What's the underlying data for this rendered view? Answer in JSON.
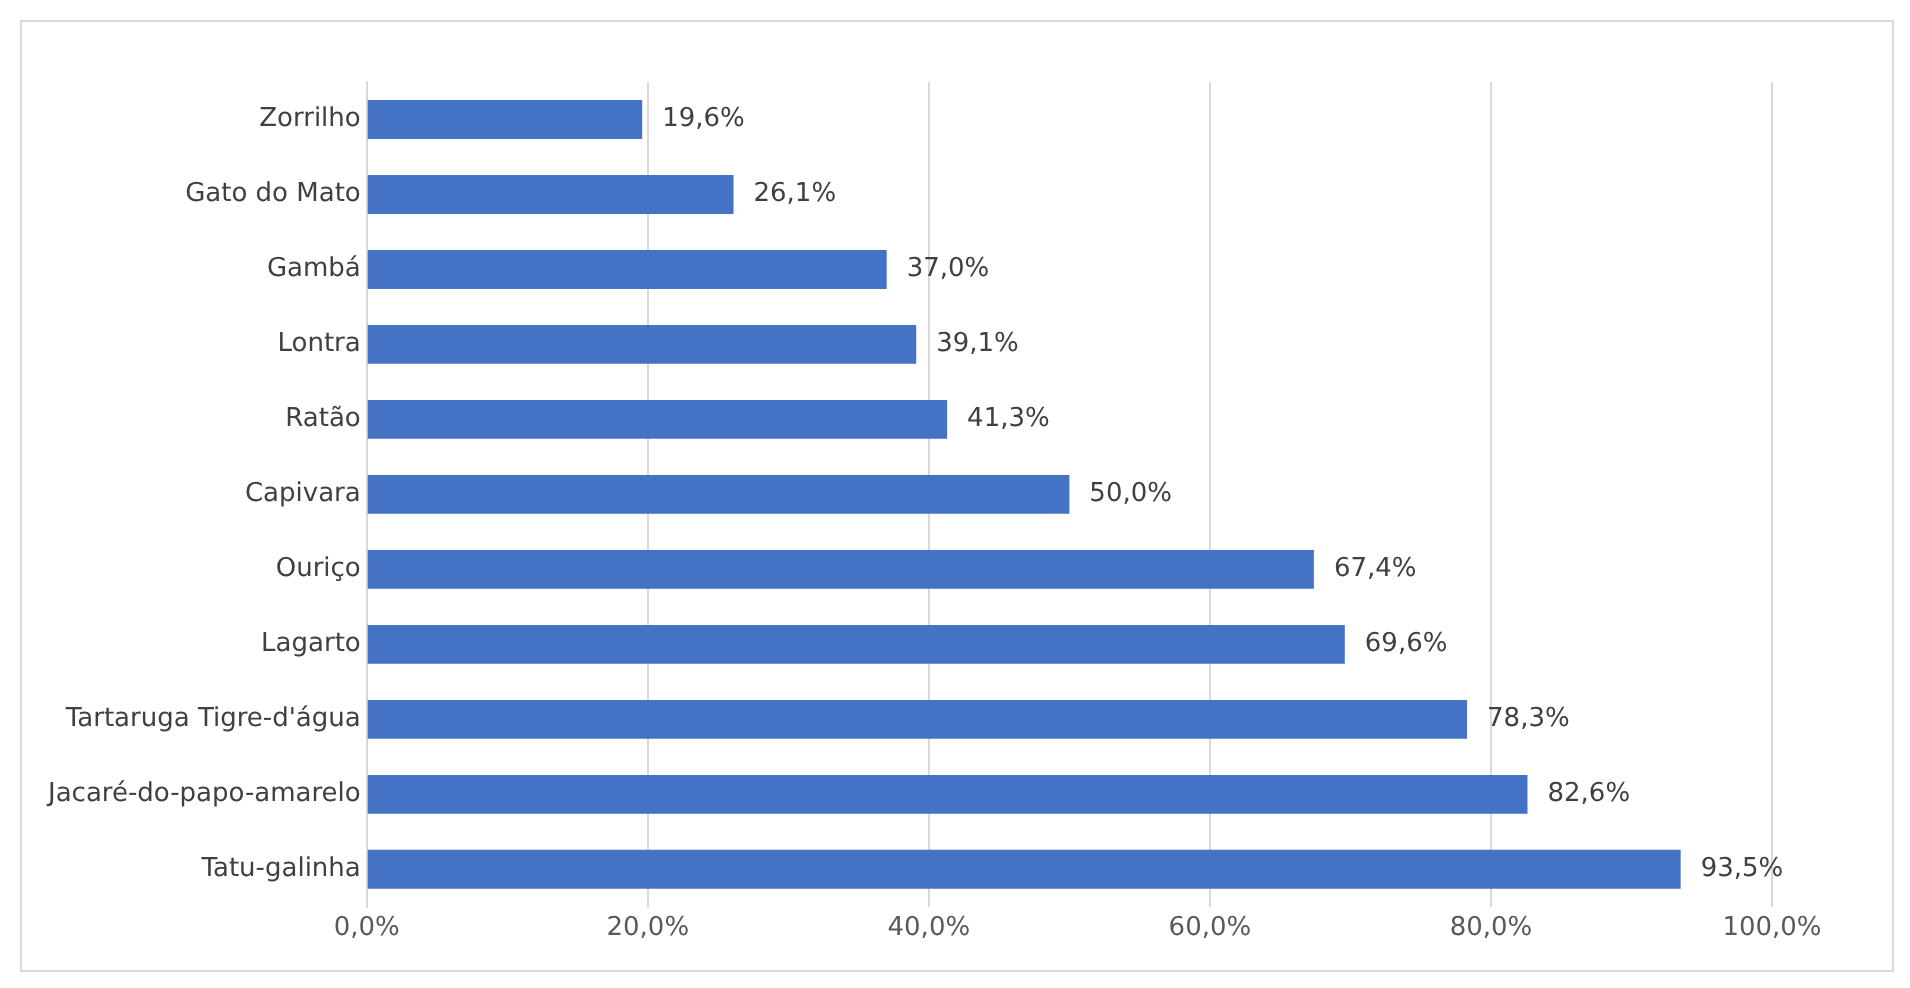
{
  "chart_data": {
    "type": "bar",
    "orientation": "horizontal",
    "categories": [
      "Zorrilho",
      "Gato do Mato",
      "Gambá",
      "Lontra",
      "Ratão",
      "Capivara",
      "Ouriço",
      "Lagarto",
      "Tartaruga Tigre-d'água",
      "Jacaré-do-papo-amarelo",
      "Tatu-galinha"
    ],
    "values": [
      19.6,
      26.1,
      37.0,
      39.1,
      41.3,
      50.0,
      67.4,
      69.6,
      78.3,
      82.6,
      93.5
    ],
    "value_labels": [
      "19,6%",
      "26,1%",
      "37,0%",
      "39,1%",
      "41,3%",
      "50,0%",
      "67,4%",
      "69,6%",
      "78,3%",
      "82,6%",
      "93,5%"
    ],
    "color": "#4472c4",
    "xlim": [
      0,
      100
    ],
    "xticks": [
      {
        "value": 0,
        "label": "0,0%"
      },
      {
        "value": 20,
        "label": "20,0%"
      },
      {
        "value": 40,
        "label": "40,0%"
      },
      {
        "value": 60,
        "label": "60,0%"
      },
      {
        "value": 80,
        "label": "80,0%"
      },
      {
        "value": 100,
        "label": "100,0%"
      }
    ],
    "grid": "x"
  }
}
